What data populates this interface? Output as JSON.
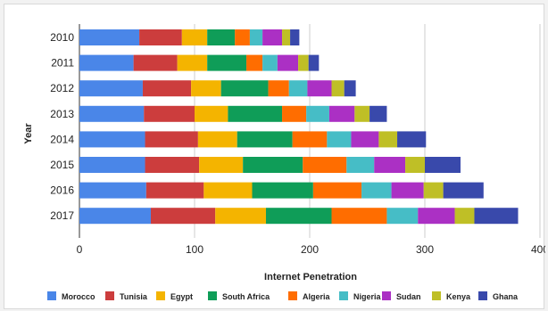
{
  "chart_data": {
    "type": "bar",
    "orientation": "horizontal",
    "stacked": true,
    "title": "",
    "xlabel": "Internet Penetration",
    "ylabel": "Year",
    "xlim": [
      0,
      400
    ],
    "xticks": [
      0,
      100,
      200,
      300,
      400
    ],
    "grid": true,
    "legend_position": "bottom",
    "categories": [
      "2010",
      "2011",
      "2012",
      "2013",
      "2014",
      "2015",
      "2016",
      "2017"
    ],
    "series": [
      {
        "name": "Morocco",
        "color": "#4a86e8",
        "values": [
          52,
          47,
          55,
          56,
          57,
          57,
          58,
          62
        ]
      },
      {
        "name": "Tunisia",
        "color": "#cc3d3d",
        "values": [
          37,
          38,
          42,
          44,
          46,
          47,
          50,
          56
        ]
      },
      {
        "name": "Egypt",
        "color": "#f4b400",
        "values": [
          22,
          26,
          26,
          29,
          34,
          38,
          42,
          44
        ]
      },
      {
        "name": "South Africa",
        "color": "#0f9d58",
        "values": [
          24,
          34,
          41,
          47,
          48,
          52,
          53,
          57
        ]
      },
      {
        "name": "Algeria",
        "color": "#ff6d00",
        "values": [
          13,
          14,
          18,
          21,
          30,
          38,
          42,
          48
        ]
      },
      {
        "name": "Nigeria",
        "color": "#46bdc6",
        "values": [
          11,
          13,
          16,
          20,
          21,
          24,
          26,
          27
        ]
      },
      {
        "name": "Sudan",
        "color": "#ab30c4",
        "values": [
          17,
          18,
          21,
          22,
          24,
          27,
          28,
          32
        ]
      },
      {
        "name": "Kenya",
        "color": "#bfbf26",
        "values": [
          7,
          9,
          11,
          13,
          16,
          17,
          17,
          17
        ]
      },
      {
        "name": "Ghana",
        "color": "#3949ab",
        "values": [
          8,
          9,
          10,
          15,
          25,
          31,
          35,
          38
        ]
      }
    ]
  }
}
